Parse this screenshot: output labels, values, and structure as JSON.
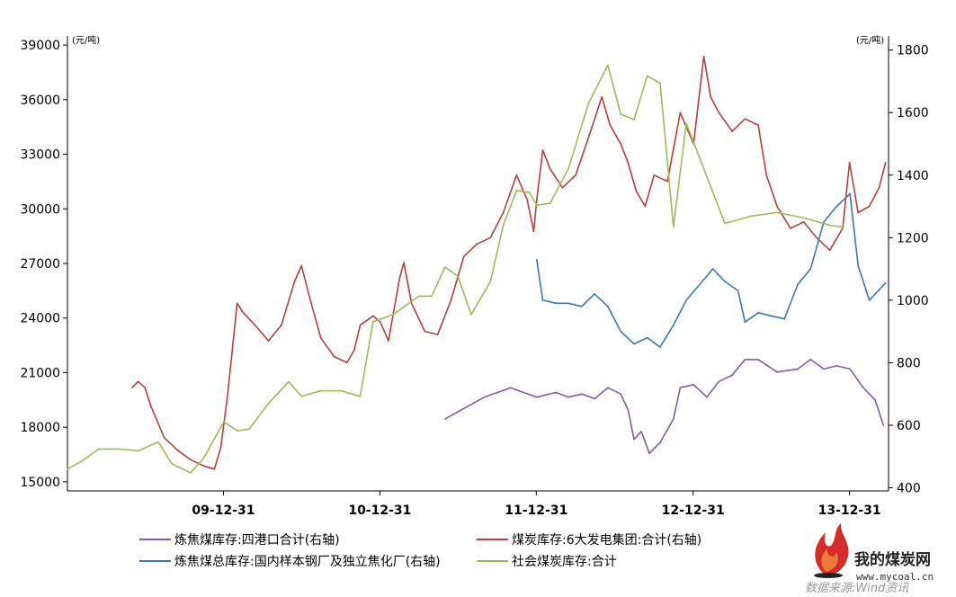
{
  "chart_data": {
    "type": "line",
    "title": "",
    "left_axis": {
      "unit": "(元/吨)",
      "ylim": [
        14500,
        39500
      ],
      "ticks": [
        15000,
        18000,
        21000,
        24000,
        27000,
        30000,
        33000,
        36000,
        39000
      ]
    },
    "right_axis": {
      "unit": "(元/吨)",
      "ylim": [
        390,
        1845
      ],
      "ticks": [
        400,
        600,
        800,
        1000,
        1200,
        1400,
        1600,
        1800
      ]
    },
    "x_axis": {
      "ticks": [
        "09-12-31",
        "10-12-31",
        "11-12-31",
        "12-12-31",
        "13-12-31"
      ]
    },
    "series": [
      {
        "name": "炼焦煤库存:四港口合计(右轴)",
        "axis": "right",
        "color": "#7b5ea7",
        "points": [
          [
            "2011-06-01",
            620
          ],
          [
            "2011-09-01",
            690
          ],
          [
            "2011-11-01",
            720
          ],
          [
            "2012-01-01",
            690
          ],
          [
            "2012-02-15",
            705
          ],
          [
            "2012-03-15",
            690
          ],
          [
            "2012-04-15",
            700
          ],
          [
            "2012-05-15",
            685
          ],
          [
            "2012-06-15",
            720
          ],
          [
            "2012-07-15",
            700
          ],
          [
            "2012-08-01",
            650
          ],
          [
            "2012-08-15",
            555
          ],
          [
            "2012-09-01",
            580
          ],
          [
            "2012-09-20",
            510
          ],
          [
            "2012-10-15",
            545
          ],
          [
            "2012-11-15",
            620
          ],
          [
            "2012-12-01",
            720
          ],
          [
            "2013-01-01",
            730
          ],
          [
            "2013-02-01",
            690
          ],
          [
            "2013-03-01",
            740
          ],
          [
            "2013-04-01",
            760
          ],
          [
            "2013-05-01",
            810
          ],
          [
            "2013-06-01",
            810
          ],
          [
            "2013-07-15",
            770
          ],
          [
            "2013-09-01",
            780
          ],
          [
            "2013-10-01",
            810
          ],
          [
            "2013-11-01",
            780
          ],
          [
            "2013-12-01",
            790
          ],
          [
            "2014-01-01",
            780
          ],
          [
            "2014-02-01",
            720
          ],
          [
            "2014-03-01",
            680
          ],
          [
            "2014-03-20",
            600
          ]
        ]
      },
      {
        "name": "煤炭库存:6大发电集团:合计(右轴)",
        "axis": "right",
        "color": "#b5403c",
        "points": [
          [
            "2009-06-01",
            720
          ],
          [
            "2009-06-15",
            740
          ],
          [
            "2009-07-01",
            720
          ],
          [
            "2009-07-15",
            660
          ],
          [
            "2009-08-15",
            560
          ],
          [
            "2009-09-15",
            520
          ],
          [
            "2009-10-15",
            490
          ],
          [
            "2009-11-15",
            470
          ],
          [
            "2009-12-10",
            460
          ],
          [
            "2009-12-25",
            530
          ],
          [
            "2010-01-10",
            700
          ],
          [
            "2010-02-01",
            990
          ],
          [
            "2010-02-15",
            960
          ],
          [
            "2010-03-15",
            920
          ],
          [
            "2010-04-15",
            870
          ],
          [
            "2010-05-15",
            920
          ],
          [
            "2010-06-15",
            1060
          ],
          [
            "2010-07-01",
            1110
          ],
          [
            "2010-07-20",
            1010
          ],
          [
            "2010-08-15",
            880
          ],
          [
            "2010-09-15",
            820
          ],
          [
            "2010-10-15",
            800
          ],
          [
            "2010-11-01",
            840
          ],
          [
            "2010-11-15",
            920
          ],
          [
            "2010-12-15",
            950
          ],
          [
            "2011-01-01",
            930
          ],
          [
            "2011-01-20",
            870
          ],
          [
            "2011-02-15",
            1070
          ],
          [
            "2011-02-25",
            1120
          ],
          [
            "2011-03-15",
            990
          ],
          [
            "2011-04-15",
            900
          ],
          [
            "2011-05-15",
            890
          ],
          [
            "2011-06-15",
            1000
          ],
          [
            "2011-07-15",
            1140
          ],
          [
            "2011-08-15",
            1180
          ],
          [
            "2011-09-15",
            1200
          ],
          [
            "2011-10-15",
            1280
          ],
          [
            "2011-11-15",
            1400
          ],
          [
            "2011-12-10",
            1320
          ],
          [
            "2011-12-25",
            1220
          ],
          [
            "2012-01-01",
            1320
          ],
          [
            "2012-01-15",
            1480
          ],
          [
            "2012-02-01",
            1420
          ],
          [
            "2012-03-01",
            1360
          ],
          [
            "2012-04-01",
            1400
          ],
          [
            "2012-05-01",
            1520
          ],
          [
            "2012-06-01",
            1650
          ],
          [
            "2012-06-20",
            1560
          ],
          [
            "2012-07-15",
            1500
          ],
          [
            "2012-08-01",
            1440
          ],
          [
            "2012-08-20",
            1350
          ],
          [
            "2012-09-10",
            1300
          ],
          [
            "2012-10-01",
            1400
          ],
          [
            "2012-11-01",
            1380
          ],
          [
            "2012-12-01",
            1600
          ],
          [
            "2013-01-01",
            1500
          ],
          [
            "2013-01-25",
            1780
          ],
          [
            "2013-02-10",
            1650
          ],
          [
            "2013-03-01",
            1600
          ],
          [
            "2013-04-01",
            1540
          ],
          [
            "2013-05-01",
            1580
          ],
          [
            "2013-06-01",
            1560
          ],
          [
            "2013-06-20",
            1400
          ],
          [
            "2013-07-15",
            1300
          ],
          [
            "2013-08-15",
            1230
          ],
          [
            "2013-09-15",
            1250
          ],
          [
            "2013-10-15",
            1200
          ],
          [
            "2013-11-15",
            1160
          ],
          [
            "2013-12-15",
            1230
          ],
          [
            "2013-12-31",
            1440
          ],
          [
            "2014-01-20",
            1280
          ],
          [
            "2014-02-15",
            1300
          ],
          [
            "2014-03-10",
            1360
          ],
          [
            "2014-03-25",
            1440
          ]
        ]
      },
      {
        "name": "炼焦煤总库存:国内样本钢厂及独立焦化厂(右轴)",
        "axis": "right",
        "color": "#3b78b0",
        "points": [
          [
            "2012-01-01",
            1130
          ],
          [
            "2012-01-15",
            1000
          ],
          [
            "2012-02-15",
            990
          ],
          [
            "2012-03-15",
            990
          ],
          [
            "2012-04-15",
            980
          ],
          [
            "2012-05-15",
            1020
          ],
          [
            "2012-06-15",
            980
          ],
          [
            "2012-07-15",
            900
          ],
          [
            "2012-08-15",
            860
          ],
          [
            "2012-09-15",
            880
          ],
          [
            "2012-10-15",
            850
          ],
          [
            "2012-11-15",
            920
          ],
          [
            "2012-12-15",
            1000
          ],
          [
            "2013-01-15",
            1050
          ],
          [
            "2013-02-15",
            1100
          ],
          [
            "2013-03-15",
            1060
          ],
          [
            "2013-04-15",
            1030
          ],
          [
            "2013-05-01",
            930
          ],
          [
            "2013-06-01",
            960
          ],
          [
            "2013-07-01",
            950
          ],
          [
            "2013-08-01",
            940
          ],
          [
            "2013-09-01",
            1050
          ],
          [
            "2013-10-01",
            1100
          ],
          [
            "2013-11-01",
            1250
          ],
          [
            "2013-12-01",
            1300
          ],
          [
            "2014-01-01",
            1340
          ],
          [
            "2014-01-20",
            1110
          ],
          [
            "2014-02-15",
            1000
          ],
          [
            "2014-03-01",
            1020
          ],
          [
            "2014-03-25",
            1055
          ]
        ]
      },
      {
        "name": "社会煤炭库存:合计",
        "axis": "left",
        "color": "#9bbb59",
        "points": [
          [
            "2009-01-01",
            15700
          ],
          [
            "2009-02-01",
            16100
          ],
          [
            "2009-03-15",
            16800
          ],
          [
            "2009-05-01",
            16800
          ],
          [
            "2009-06-15",
            16700
          ],
          [
            "2009-08-01",
            17200
          ],
          [
            "2009-09-01",
            16000
          ],
          [
            "2009-10-15",
            15500
          ],
          [
            "2009-11-15",
            16300
          ],
          [
            "2010-01-01",
            18300
          ],
          [
            "2010-02-01",
            17800
          ],
          [
            "2010-03-01",
            17900
          ],
          [
            "2010-04-15",
            19300
          ],
          [
            "2010-06-01",
            20500
          ],
          [
            "2010-07-01",
            19700
          ],
          [
            "2010-08-15",
            20000
          ],
          [
            "2010-10-01",
            20000
          ],
          [
            "2010-11-15",
            19700
          ],
          [
            "2010-12-15",
            23800
          ],
          [
            "2011-02-01",
            24200
          ],
          [
            "2011-04-01",
            25200
          ],
          [
            "2011-05-01",
            25200
          ],
          [
            "2011-06-01",
            26800
          ],
          [
            "2011-07-01",
            26300
          ],
          [
            "2011-08-01",
            24200
          ],
          [
            "2011-09-15",
            26000
          ],
          [
            "2011-10-15",
            29100
          ],
          [
            "2011-11-15",
            31000
          ],
          [
            "2011-12-15",
            30900
          ],
          [
            "2012-01-01",
            30200
          ],
          [
            "2012-02-01",
            30300
          ],
          [
            "2012-03-15",
            32200
          ],
          [
            "2012-05-01",
            35800
          ],
          [
            "2012-06-15",
            37900
          ],
          [
            "2012-07-15",
            35200
          ],
          [
            "2012-08-15",
            34900
          ],
          [
            "2012-09-15",
            37300
          ],
          [
            "2012-10-15",
            36900
          ],
          [
            "2012-11-15",
            29000
          ],
          [
            "2012-12-15",
            34700
          ],
          [
            "2013-01-15",
            32800
          ],
          [
            "2013-03-15",
            29200
          ],
          [
            "2013-05-15",
            29600
          ],
          [
            "2013-07-15",
            29800
          ],
          [
            "2013-09-15",
            29500
          ],
          [
            "2013-11-15",
            29100
          ],
          [
            "2013-12-15",
            29000
          ]
        ]
      }
    ],
    "legend_position": "bottom"
  },
  "watermark": {
    "title": "我的煤炭网",
    "url": "www.mycoal.cn",
    "source": "数据来源:Wind资讯"
  }
}
